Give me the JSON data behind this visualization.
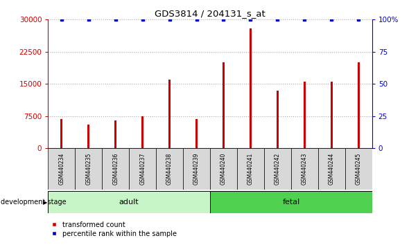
{
  "title": "GDS3814 / 204131_s_at",
  "categories": [
    "GSM440234",
    "GSM440235",
    "GSM440236",
    "GSM440237",
    "GSM440238",
    "GSM440239",
    "GSM440240",
    "GSM440241",
    "GSM440242",
    "GSM440243",
    "GSM440244",
    "GSM440245"
  ],
  "transformed_counts": [
    6800,
    5500,
    6500,
    7500,
    16000,
    6800,
    20000,
    28000,
    13500,
    15500,
    15500,
    20000
  ],
  "percentile_ranks": [
    100,
    100,
    100,
    100,
    100,
    100,
    100,
    100,
    100,
    100,
    100,
    100
  ],
  "adult_indices": [
    0,
    1,
    2,
    3,
    4,
    5
  ],
  "fetal_indices": [
    6,
    7,
    8,
    9,
    10,
    11
  ],
  "bar_color_red": "#cc0000",
  "bar_color_blue": "#0000cc",
  "ylim_left": [
    0,
    30000
  ],
  "ylim_right": [
    0,
    100
  ],
  "yticks_left": [
    0,
    7500,
    15000,
    22500,
    30000
  ],
  "yticks_right": [
    0,
    25,
    50,
    75,
    100
  ],
  "yticklabels_left": [
    "0",
    "7500",
    "15000",
    "22500",
    "30000"
  ],
  "yticklabels_right": [
    "0",
    "25",
    "50",
    "75",
    "100%"
  ],
  "grid_color": "#aaaaaa",
  "adult_color": "#c8f5c8",
  "fetal_color": "#50d050",
  "adult_label": "adult",
  "fetal_label": "fetal",
  "dev_stage_label": "development stage",
  "legend_red_label": "transformed count",
  "legend_blue_label": "percentile rank within the sample",
  "tick_label_bg": "#d8d8d8",
  "bar_width": 0.08
}
